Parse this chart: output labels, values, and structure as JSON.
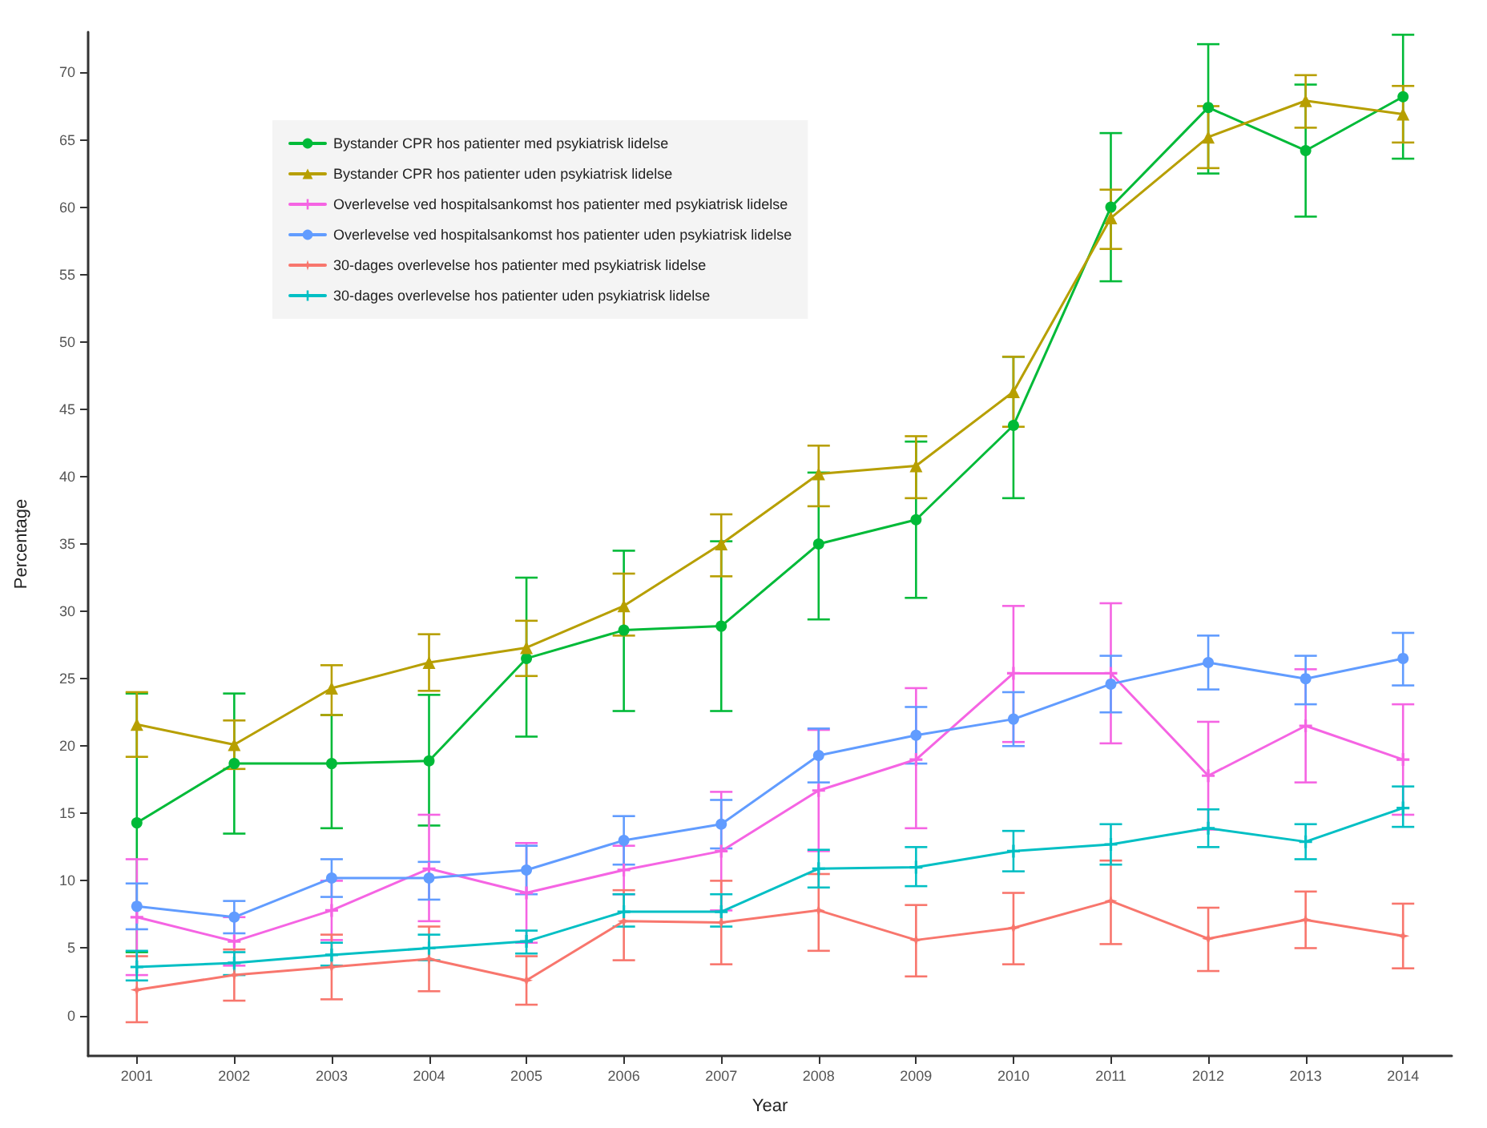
{
  "chart_data": {
    "type": "line",
    "xlabel": "Year",
    "ylabel": "Percentage",
    "categories": [
      "2001",
      "2002",
      "2003",
      "2004",
      "2005",
      "2006",
      "2007",
      "2008",
      "2009",
      "2010",
      "2011",
      "2012",
      "2013",
      "2014"
    ],
    "ylim": [
      -3,
      73
    ],
    "yticks": [
      0,
      5,
      10,
      15,
      20,
      25,
      30,
      35,
      40,
      45,
      50,
      55,
      60,
      65,
      70
    ],
    "grid": false,
    "legend": "top left",
    "line_style": "solid",
    "series": [
      {
        "name": "Bystander CPR hos patienter med psykiatrisk lidelse",
        "color": "#00ba38",
        "marker": "circle",
        "values": [
          14.3,
          18.7,
          18.7,
          18.9,
          26.5,
          28.6,
          28.9,
          35.0,
          36.8,
          43.8,
          60.0,
          67.4,
          64.2,
          68.2
        ],
        "errors": [
          [
            4.7,
            23.9
          ],
          [
            13.5,
            23.9
          ],
          [
            13.9,
            22.3
          ],
          [
            14.1,
            23.8
          ],
          [
            20.7,
            32.5
          ],
          [
            22.6,
            34.5
          ],
          [
            22.6,
            35.2
          ],
          [
            29.4,
            40.3
          ],
          [
            31.0,
            42.6
          ],
          [
            38.4,
            48.9
          ],
          [
            54.5,
            65.5
          ],
          [
            62.5,
            72.1
          ],
          [
            59.3,
            69.1
          ],
          [
            63.6,
            72.8
          ]
        ]
      },
      {
        "name": "Bystander CPR hos patienter uden psykiatrisk lidelse",
        "color": "#b79f00",
        "marker": "triangle",
        "values": [
          21.6,
          20.1,
          24.3,
          26.2,
          27.3,
          30.4,
          35.0,
          40.2,
          40.8,
          46.3,
          59.2,
          65.2,
          67.9,
          66.9
        ],
        "errors": [
          [
            19.2,
            24.0
          ],
          [
            18.3,
            21.9
          ],
          [
            22.3,
            26.0
          ],
          [
            24.1,
            28.3
          ],
          [
            25.2,
            29.3
          ],
          [
            28.2,
            32.8
          ],
          [
            32.6,
            37.2
          ],
          [
            37.8,
            42.3
          ],
          [
            38.4,
            43.0
          ],
          [
            43.7,
            48.9
          ],
          [
            56.9,
            61.3
          ],
          [
            62.9,
            67.5
          ],
          [
            65.9,
            69.8
          ],
          [
            64.8,
            69.0
          ]
        ]
      },
      {
        "name": "Overlevelse ved hospitalsankomst hos patienter med psykiatrisk lidelse",
        "color": "#f564e3",
        "marker": "cross",
        "values": [
          7.3,
          5.5,
          7.8,
          10.9,
          9.1,
          10.8,
          12.2,
          16.7,
          19.0,
          25.4,
          25.4,
          17.8,
          21.5,
          19.0
        ],
        "errors": [
          [
            3.0,
            11.6
          ],
          [
            3.7,
            7.3
          ],
          [
            5.6,
            10.0
          ],
          [
            7.0,
            14.9
          ],
          [
            5.4,
            12.8
          ],
          [
            9.0,
            12.6
          ],
          [
            7.8,
            16.6
          ],
          [
            12.2,
            21.2
          ],
          [
            13.9,
            24.3
          ],
          [
            20.3,
            30.4
          ],
          [
            20.2,
            30.6
          ],
          [
            13.8,
            21.8
          ],
          [
            17.3,
            25.7
          ],
          [
            14.9,
            23.1
          ]
        ]
      },
      {
        "name": "Overlevelse ved hospitalsankomst hos patienter uden psykiatrisk lidelse",
        "color": "#619cff",
        "marker": "circle",
        "values": [
          8.1,
          7.3,
          10.2,
          10.2,
          10.8,
          13.0,
          14.2,
          19.3,
          20.8,
          22.0,
          24.6,
          26.2,
          25.0,
          26.5
        ],
        "errors": [
          [
            6.4,
            9.8
          ],
          [
            6.1,
            8.5
          ],
          [
            8.8,
            11.6
          ],
          [
            8.6,
            11.4
          ],
          [
            9.0,
            12.6
          ],
          [
            11.2,
            14.8
          ],
          [
            12.4,
            16.0
          ],
          [
            17.3,
            21.3
          ],
          [
            18.7,
            22.9
          ],
          [
            20.0,
            24.0
          ],
          [
            22.5,
            26.7
          ],
          [
            24.2,
            28.2
          ],
          [
            23.1,
            26.7
          ],
          [
            24.5,
            28.4
          ]
        ]
      },
      {
        "name": "30-dages overlevelse hos patienter med psykiatrisk lidelse",
        "color": "#f8766d",
        "marker": "star",
        "values": [
          1.9,
          3.0,
          3.6,
          4.2,
          2.6,
          7.0,
          6.9,
          7.8,
          5.6,
          6.5,
          8.5,
          5.7,
          7.1,
          5.9
        ],
        "errors": [
          [
            -0.5,
            4.4
          ],
          [
            1.1,
            4.9
          ],
          [
            1.2,
            6.0
          ],
          [
            1.8,
            6.6
          ],
          [
            0.8,
            4.4
          ],
          [
            4.1,
            9.3
          ],
          [
            3.8,
            10.0
          ],
          [
            4.8,
            10.5
          ],
          [
            2.9,
            8.2
          ],
          [
            3.8,
            9.1
          ],
          [
            5.3,
            11.5
          ],
          [
            3.3,
            8.0
          ],
          [
            5.0,
            9.2
          ],
          [
            3.5,
            8.3
          ]
        ]
      },
      {
        "name": "30-dages overlevelse hos patienter uden psykiatrisk lidelse",
        "color": "#00bfc4",
        "marker": "cross",
        "values": [
          3.6,
          3.9,
          4.5,
          5.0,
          5.5,
          7.7,
          7.7,
          10.9,
          11.0,
          12.2,
          12.7,
          13.9,
          12.9,
          15.4
        ],
        "errors": [
          [
            2.6,
            4.8
          ],
          [
            3.0,
            4.7
          ],
          [
            3.7,
            5.4
          ],
          [
            4.1,
            6.0
          ],
          [
            4.6,
            6.3
          ],
          [
            6.6,
            9.0
          ],
          [
            6.6,
            9.0
          ],
          [
            9.5,
            12.3
          ],
          [
            9.6,
            12.5
          ],
          [
            10.7,
            13.7
          ],
          [
            11.2,
            14.2
          ],
          [
            12.5,
            15.3
          ],
          [
            11.6,
            14.2
          ],
          [
            14.0,
            17.0
          ]
        ]
      }
    ]
  }
}
